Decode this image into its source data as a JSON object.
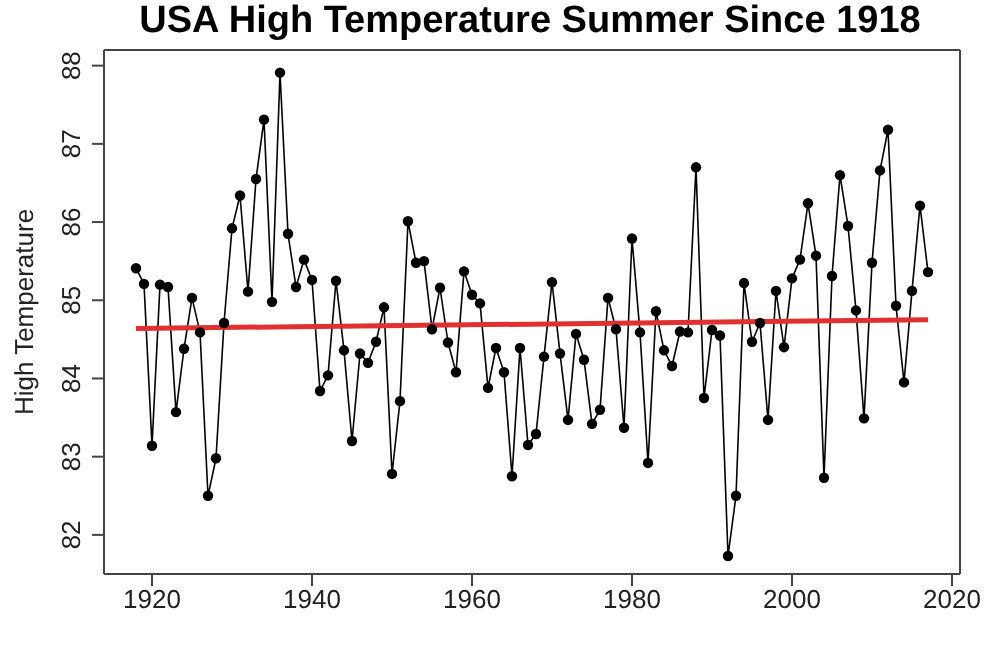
{
  "chart_data": {
    "type": "line",
    "title": "USA High Temperature Summer Since 1918",
    "ylabel": "High Temperature",
    "x": [
      1918,
      1919,
      1920,
      1921,
      1922,
      1923,
      1924,
      1925,
      1926,
      1927,
      1928,
      1929,
      1930,
      1931,
      1932,
      1933,
      1934,
      1935,
      1936,
      1937,
      1938,
      1939,
      1940,
      1941,
      1942,
      1943,
      1944,
      1945,
      1946,
      1947,
      1948,
      1949,
      1950,
      1951,
      1952,
      1953,
      1954,
      1955,
      1956,
      1957,
      1958,
      1959,
      1960,
      1961,
      1962,
      1963,
      1964,
      1965,
      1966,
      1967,
      1968,
      1969,
      1970,
      1971,
      1972,
      1973,
      1974,
      1975,
      1976,
      1977,
      1978,
      1979,
      1980,
      1981,
      1982,
      1983,
      1984,
      1985,
      1986,
      1987,
      1988,
      1989,
      1990,
      1991,
      1992,
      1993,
      1994,
      1995,
      1996,
      1997,
      1998,
      1999,
      2000,
      2001,
      2002,
      2003,
      2004,
      2005,
      2006,
      2007,
      2008,
      2009,
      2010,
      2011,
      2012,
      2013,
      2014,
      2015,
      2016,
      2017
    ],
    "series": [
      {
        "color": "#000000",
        "marker": "circle",
        "values": [
          85.41,
          85.21,
          83.14,
          85.2,
          85.17,
          83.57,
          84.38,
          85.03,
          84.59,
          82.5,
          82.98,
          84.71,
          85.92,
          86.34,
          85.11,
          86.55,
          87.31,
          84.98,
          87.91,
          85.85,
          85.17,
          85.52,
          85.26,
          83.84,
          84.04,
          85.25,
          84.36,
          83.2,
          84.32,
          84.2,
          84.47,
          84.91,
          82.78,
          83.71,
          86.01,
          85.48,
          85.5,
          84.63,
          85.16,
          84.46,
          84.08,
          85.37,
          85.07,
          84.96,
          83.88,
          84.39,
          84.08,
          82.75,
          84.39,
          83.15,
          83.29,
          84.28,
          85.23,
          84.32,
          83.47,
          84.57,
          84.24,
          83.42,
          83.6,
          85.03,
          84.63,
          83.37,
          85.79,
          84.59,
          82.92,
          84.86,
          84.36,
          84.16,
          84.6,
          84.59,
          86.7,
          83.75,
          84.62,
          84.55,
          81.73,
          82.5,
          85.22,
          84.47,
          84.71,
          83.47,
          85.12,
          84.4,
          85.28,
          85.52,
          86.24,
          85.57,
          82.73,
          85.31,
          86.6,
          85.95,
          84.87,
          83.49,
          85.48,
          86.66,
          87.18,
          84.93,
          83.95,
          85.12,
          86.21,
          85.36
        ]
      },
      {
        "type": "line",
        "color": "#e03030",
        "marker": "none",
        "x": [
          1918,
          2017
        ],
        "values": [
          84.64,
          84.75
        ]
      }
    ],
    "xlim": [
      1914,
      2021
    ],
    "xticks": [
      1920,
      1940,
      1960,
      1980,
      2000,
      2020
    ],
    "ylim": [
      81.5,
      88.2
    ],
    "yticks": [
      82,
      83,
      84,
      85,
      86,
      87,
      88
    ],
    "grid": false,
    "legend": false,
    "line_style": "solid"
  }
}
